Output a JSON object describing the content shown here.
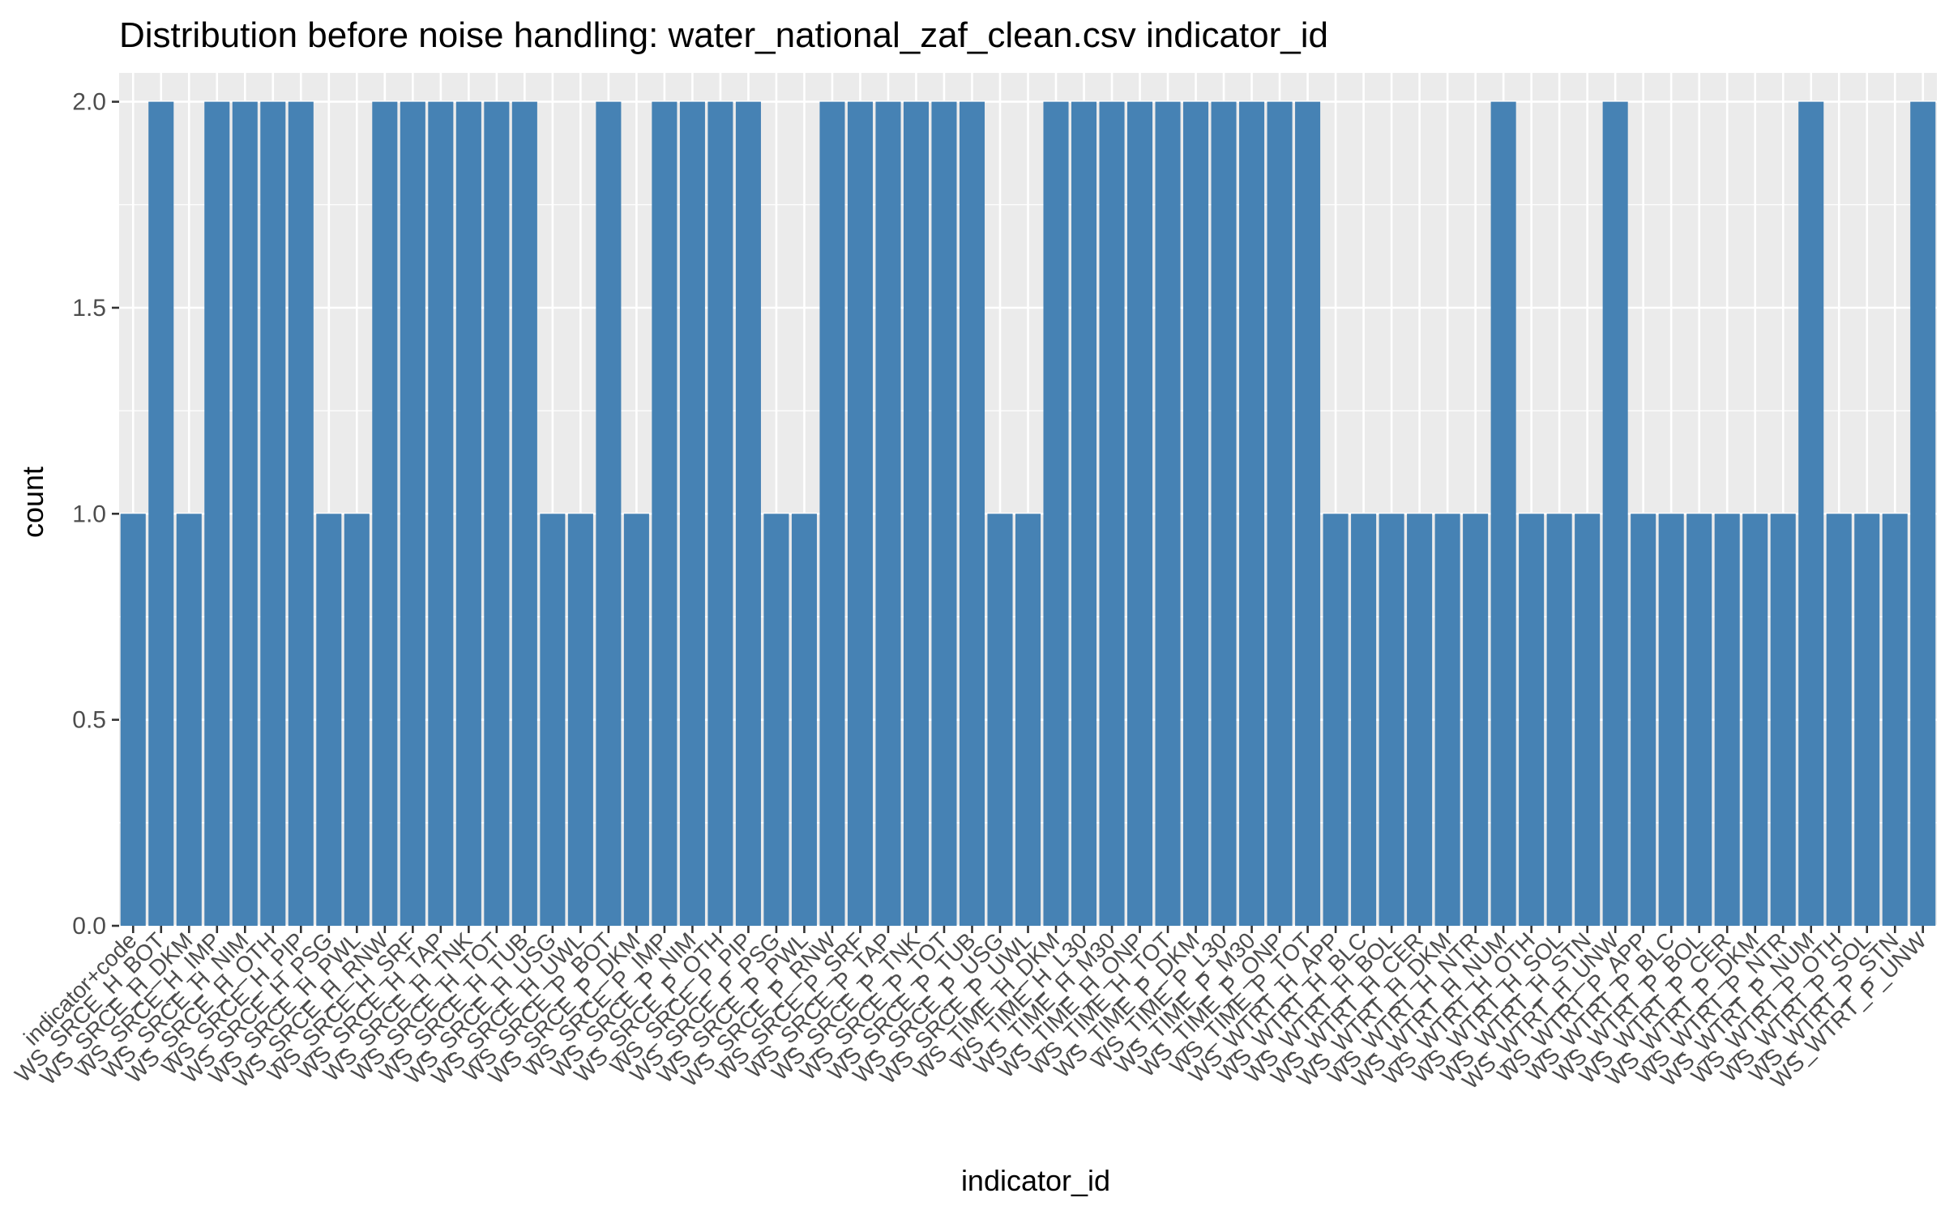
{
  "chart_data": {
    "type": "bar",
    "title": "Distribution before noise handling: water_national_zaf_clean.csv indicator_id",
    "xlabel": "indicator_id",
    "ylabel": "count",
    "ylim": [
      0,
      2.07
    ],
    "y_ticks": [
      "0.0",
      "0.5",
      "1.0",
      "1.5",
      "2.0"
    ],
    "y_tick_values": [
      0,
      0.5,
      1.0,
      1.5,
      2.0
    ],
    "grid": true,
    "legend": "none",
    "bar_color": "#4682B4",
    "panel_background": "#EBEBEB",
    "gridline_color": "#FFFFFF",
    "categories": [
      "indicator+code",
      "WS_SRCE_H_BOT",
      "WS_SRCE_H_DKM",
      "WS_SRCE_H_IMP",
      "WS_SRCE_H_NIM",
      "WS_SRCE_H_OTH",
      "WS_SRCE_H_PIP",
      "WS_SRCE_H_PSG",
      "WS_SRCE_H_PWL",
      "WS_SRCE_H_RNW",
      "WS_SRCE_H_SRF",
      "WS_SRCE_H_TAP",
      "WS_SRCE_H_TNK",
      "WS_SRCE_H_TOT",
      "WS_SRCE_H_TUB",
      "WS_SRCE_H_USG",
      "WS_SRCE_H_UWL",
      "WS_SRCE_P_BOT",
      "WS_SRCE_P_DKM",
      "WS_SRCE_P_IMP",
      "WS_SRCE_P_NIM",
      "WS_SRCE_P_OTH",
      "WS_SRCE_P_PIP",
      "WS_SRCE_P_PSG",
      "WS_SRCE_P_PWL",
      "WS_SRCE_P_RNW",
      "WS_SRCE_P_SRF",
      "WS_SRCE_P_TAP",
      "WS_SRCE_P_TNK",
      "WS_SRCE_P_TOT",
      "WS_SRCE_P_TUB",
      "WS_SRCE_P_USG",
      "WS_SRCE_P_UWL",
      "WS_TIME_H_DKM",
      "WS_TIME_H_L30",
      "WS_TIME_H_M30",
      "WS_TIME_H_ONP",
      "WS_TIME_H_TOT",
      "WS_TIME_P_DKM",
      "WS_TIME_P_L30",
      "WS_TIME_P_M30",
      "WS_TIME_P_ONP",
      "WS_TIME_P_TOT",
      "WS_WTRT_H_APP",
      "WS_WTRT_H_BLC",
      "WS_WTRT_H_BOL",
      "WS_WTRT_H_CER",
      "WS_WTRT_H_DKM",
      "WS_WTRT_H_NTR",
      "WS_WTRT_H_NUM",
      "WS_WTRT_H_OTH",
      "WS_WTRT_H_SOL",
      "WS_WTRT_H_STN",
      "WS_WTRT_H_UNW",
      "WS_WTRT_P_APP",
      "WS_WTRT_P_BLC",
      "WS_WTRT_P_BOL",
      "WS_WTRT_P_CER",
      "WS_WTRT_P_DKM",
      "WS_WTRT_P_NTR",
      "WS_WTRT_P_NUM",
      "WS_WTRT_P_OTH",
      "WS_WTRT_P_SOL",
      "WS_WTRT_P_STN",
      "WS_WTRT_P_UNW"
    ],
    "values": [
      1,
      2,
      1,
      2,
      2,
      2,
      2,
      1,
      1,
      2,
      2,
      2,
      2,
      2,
      2,
      1,
      1,
      2,
      1,
      2,
      2,
      2,
      2,
      1,
      1,
      2,
      2,
      2,
      2,
      2,
      2,
      1,
      1,
      2,
      2,
      2,
      2,
      2,
      2,
      2,
      2,
      2,
      2,
      1,
      1,
      1,
      1,
      1,
      1,
      2,
      1,
      1,
      1,
      2,
      1,
      1,
      1,
      1,
      1,
      1,
      2,
      1,
      1,
      1,
      2
    ]
  }
}
